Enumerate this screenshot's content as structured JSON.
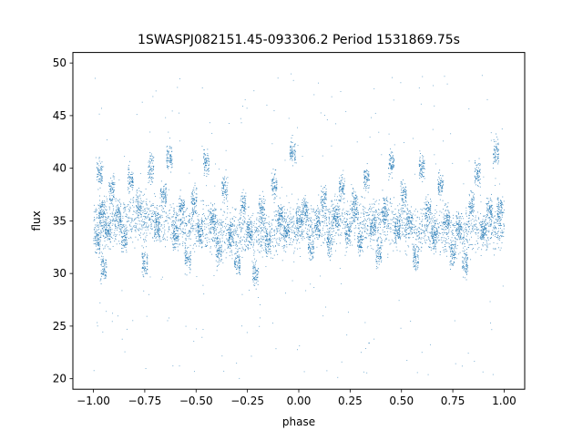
{
  "chart_data": {
    "type": "scatter",
    "title": "1SWASPJ082151.45-093306.2 Period 1531869.75s",
    "xlabel": "phase",
    "ylabel": "flux",
    "xlim": [
      -1.1,
      1.1
    ],
    "ylim": [
      19.0,
      51.0
    ],
    "xticks": [
      -1.0,
      -0.75,
      -0.5,
      -0.25,
      0.0,
      0.25,
      0.5,
      0.75,
      1.0
    ],
    "xtick_labels": [
      "−1.00",
      "−0.75",
      "−0.50",
      "−0.25",
      "0.00",
      "0.25",
      "0.50",
      "0.75",
      "1.00"
    ],
    "yticks": [
      20,
      25,
      30,
      35,
      40,
      45,
      50
    ],
    "ytick_labels": [
      "20",
      "25",
      "30",
      "35",
      "40",
      "45",
      "50"
    ],
    "grid": false,
    "legend": "none",
    "marker_color": "#1f77b4",
    "series": [
      {
        "description_values": "phase-folded light curve; points repeat with period 1 in phase over [-1, 1]",
        "core_band": [
          30.0,
          40.5
        ],
        "typical_center": 34.5,
        "outlier_range": [
          20.0,
          49.0
        ],
        "x": [
          -0.98,
          -0.97,
          -0.96,
          -0.95,
          -0.93,
          -0.91,
          -0.88,
          -0.85,
          -0.82,
          -0.78,
          -0.75,
          -0.72,
          -0.69,
          -0.66,
          -0.63,
          -0.6,
          -0.57,
          -0.54,
          -0.51,
          -0.48,
          -0.45,
          -0.42,
          -0.39,
          -0.36,
          -0.33,
          -0.3,
          -0.27,
          -0.24,
          -0.21,
          -0.18,
          -0.15,
          -0.12,
          -0.09,
          -0.06,
          -0.03,
          0.0,
          0.03,
          0.06,
          0.09,
          0.12,
          0.15,
          0.18,
          0.21,
          0.24,
          0.27,
          0.3,
          0.33,
          0.36,
          0.39,
          0.42,
          0.45,
          0.48,
          0.51,
          0.54,
          0.57,
          0.6,
          0.63,
          0.66,
          0.69,
          0.72,
          0.75,
          0.78,
          0.81,
          0.84,
          0.87,
          0.9,
          0.93,
          0.96,
          0.98
        ],
        "y": [
          33.0,
          39.5,
          36.0,
          30.5,
          34.0,
          38.0,
          35.5,
          33.0,
          39.0,
          36.5,
          31.0,
          40.0,
          34.5,
          37.5,
          41.0,
          33.5,
          36.0,
          31.5,
          37.0,
          34.0,
          40.5,
          35.0,
          32.0,
          38.0,
          33.5,
          31.0,
          36.5,
          34.0,
          30.0,
          36.0,
          33.0,
          38.5,
          35.5,
          34.0,
          41.5,
          35.0,
          36.0,
          32.5,
          34.5,
          37.0,
          33.0,
          35.5,
          38.0,
          34.0,
          36.5,
          33.0,
          39.0,
          34.5,
          32.0,
          36.0,
          40.5,
          34.0,
          37.5,
          35.0,
          31.5,
          40.0,
          36.0,
          33.5,
          38.5,
          35.0,
          32.0,
          34.5,
          31.0,
          36.5,
          39.5,
          34.0,
          36.0,
          41.5,
          36.0
        ]
      }
    ]
  }
}
